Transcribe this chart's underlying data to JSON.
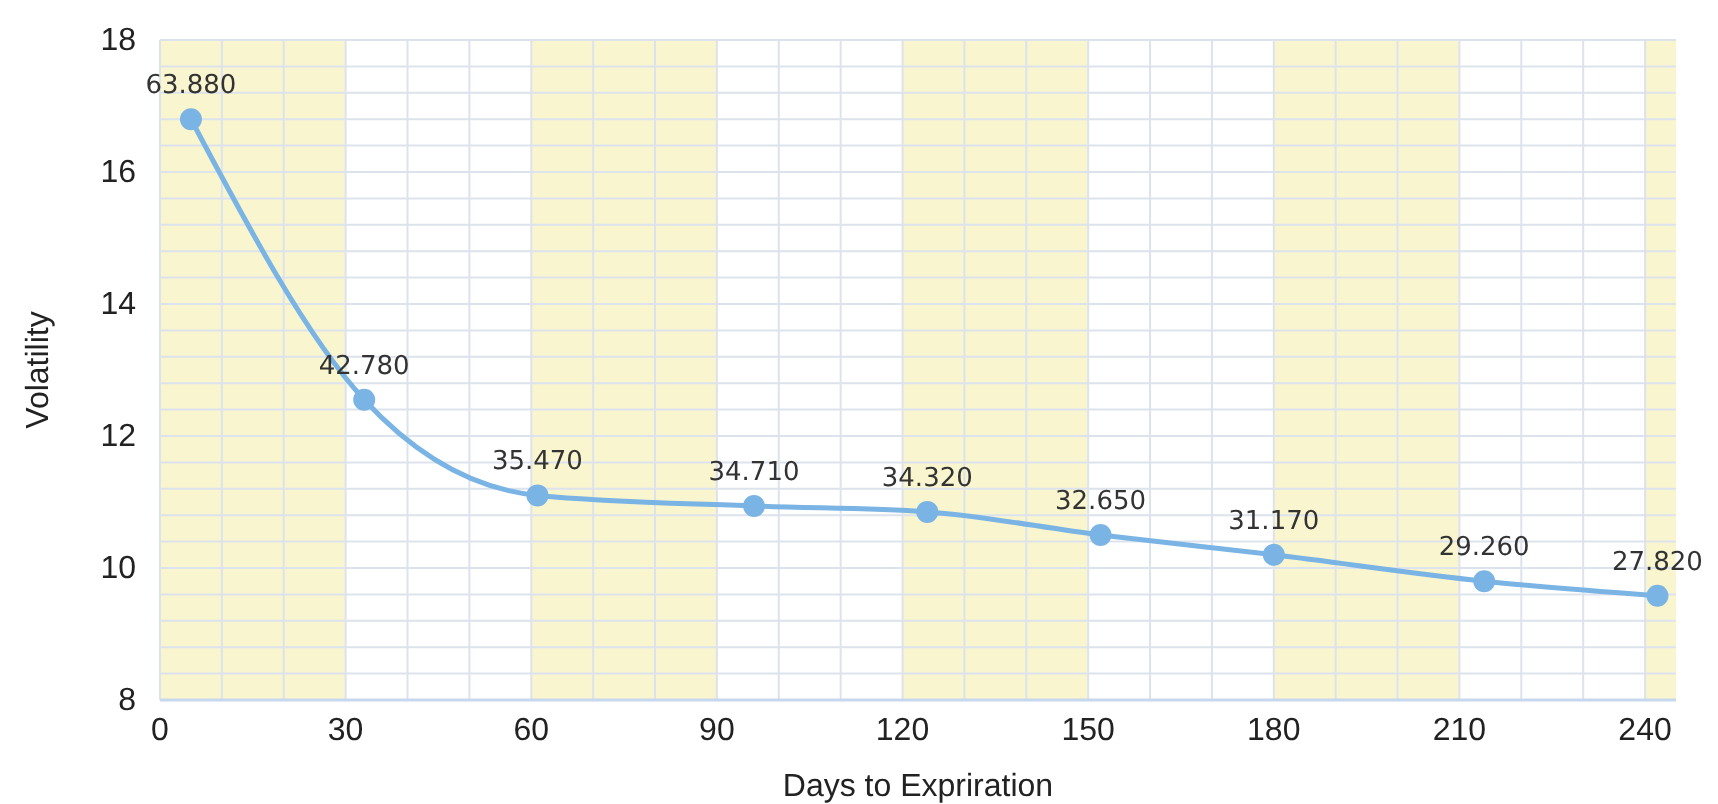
{
  "chart_data": {
    "type": "line",
    "xlabel": "Days to Expriration",
    "ylabel": "Volatility",
    "x": [
      5,
      33,
      61,
      96,
      124,
      152,
      180,
      214,
      242
    ],
    "series": [
      {
        "color": "#7ab4e4",
        "values": [
          16.8,
          12.55,
          11.1,
          10.94,
          10.85,
          10.5,
          10.2,
          9.8,
          9.58
        ]
      }
    ],
    "annotations": [
      {
        "text": "63.880",
        "x": 5,
        "y": 16.8
      },
      {
        "text": "42.780",
        "x": 33,
        "y": 12.55
      },
      {
        "text": "35.470",
        "x": 61,
        "y": 11.1
      },
      {
        "text": "34.710",
        "x": 96,
        "y": 10.94
      },
      {
        "text": "34.320",
        "x": 124,
        "y": 10.85
      },
      {
        "text": "32.650",
        "x": 152,
        "y": 10.5
      },
      {
        "text": "31.170",
        "x": 180,
        "y": 10.2
      },
      {
        "text": "29.260",
        "x": 214,
        "y": 9.8
      },
      {
        "text": "27.820",
        "x": 242,
        "y": 9.58
      }
    ],
    "xlim": [
      0,
      245
    ],
    "ylim": [
      8,
      18
    ],
    "xticks": [
      0,
      {
        "value": 10,
        "label": null
      },
      {
        "value": 20,
        "label": null
      },
      30,
      {
        "value": 40,
        "label": null
      },
      {
        "value": 50,
        "label": null
      },
      60,
      {
        "value": 70,
        "label": null
      },
      {
        "value": 80,
        "label": null
      },
      90,
      {
        "value": 100,
        "label": null
      },
      {
        "value": 110,
        "label": null
      },
      120,
      {
        "value": 130,
        "label": null
      },
      {
        "value": 140,
        "label": null
      },
      150,
      {
        "value": 160,
        "label": null
      },
      {
        "value": 170,
        "label": null
      },
      180,
      {
        "value": 190,
        "label": null
      },
      {
        "value": 200,
        "label": null
      },
      210,
      {
        "value": 220,
        "label": null
      },
      {
        "value": 230,
        "label": null
      },
      240
    ],
    "yticks": [
      8,
      {
        "value": 8.4,
        "label": null
      },
      {
        "value": 8.8,
        "label": null
      },
      {
        "value": 9.2,
        "label": null
      },
      {
        "value": 9.6,
        "label": null
      },
      10,
      {
        "value": 10.4,
        "label": null
      },
      {
        "value": 10.8,
        "label": null
      },
      {
        "value": 11.2,
        "label": null
      },
      {
        "value": 11.6,
        "label": null
      },
      12,
      {
        "value": 12.4,
        "label": null
      },
      {
        "value": 12.8,
        "label": null
      },
      {
        "value": 13.2,
        "label": null
      },
      {
        "value": 13.6,
        "label": null
      },
      14,
      {
        "value": 14.4,
        "label": null
      },
      {
        "value": 14.8,
        "label": null
      },
      {
        "value": 15.2,
        "label": null
      },
      {
        "value": 15.6,
        "label": null
      },
      16,
      {
        "value": 16.4,
        "label": null
      },
      {
        "value": 16.8,
        "label": null
      },
      {
        "value": 17.2,
        "label": null
      },
      {
        "value": 17.6,
        "label": null
      },
      18
    ],
    "grid": true,
    "marker": "circle",
    "line_style": "solid",
    "bands": [
      {
        "axis": "x",
        "from": 0,
        "to": 30,
        "color": "#f8f5cf"
      },
      {
        "axis": "x",
        "from": 60,
        "to": 90,
        "color": "#f8f5cf"
      },
      {
        "axis": "x",
        "from": 120,
        "to": 150,
        "color": "#f8f5cf"
      },
      {
        "axis": "x",
        "from": 180,
        "to": 210,
        "color": "#f8f5cf"
      },
      {
        "axis": "x",
        "from": 240,
        "to": 245,
        "color": "#f8f5cf"
      }
    ]
  }
}
